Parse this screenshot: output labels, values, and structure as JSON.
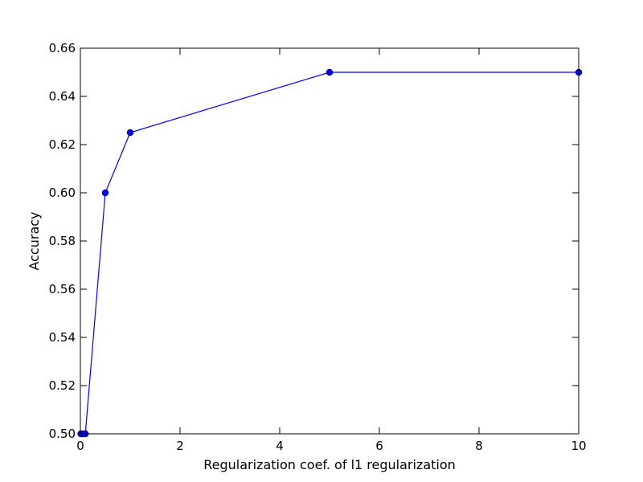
{
  "chart_data": {
    "type": "line",
    "title": "",
    "xlabel": "Regularization coef. of l1 regularization",
    "ylabel": "Accuracy",
    "xlim": [
      0,
      10
    ],
    "ylim": [
      0.5,
      0.66
    ],
    "xticks": [
      0,
      2,
      4,
      6,
      8,
      10
    ],
    "xtick_labels": [
      "0",
      "2",
      "4",
      "6",
      "8",
      "10"
    ],
    "yticks": [
      0.5,
      0.52,
      0.54,
      0.56,
      0.58,
      0.6,
      0.62,
      0.64,
      0.66
    ],
    "ytick_labels": [
      "0.50",
      "0.52",
      "0.54",
      "0.56",
      "0.58",
      "0.60",
      "0.62",
      "0.64",
      "0.66"
    ],
    "grid": false,
    "legend": "none",
    "series": [
      {
        "color": "#0000ff",
        "marker": "circle",
        "x": [
          0.01,
          0.05,
          0.1,
          0.5,
          1,
          5,
          10
        ],
        "y": [
          0.5,
          0.5,
          0.5,
          0.6,
          0.625,
          0.65,
          0.65
        ]
      }
    ]
  }
}
